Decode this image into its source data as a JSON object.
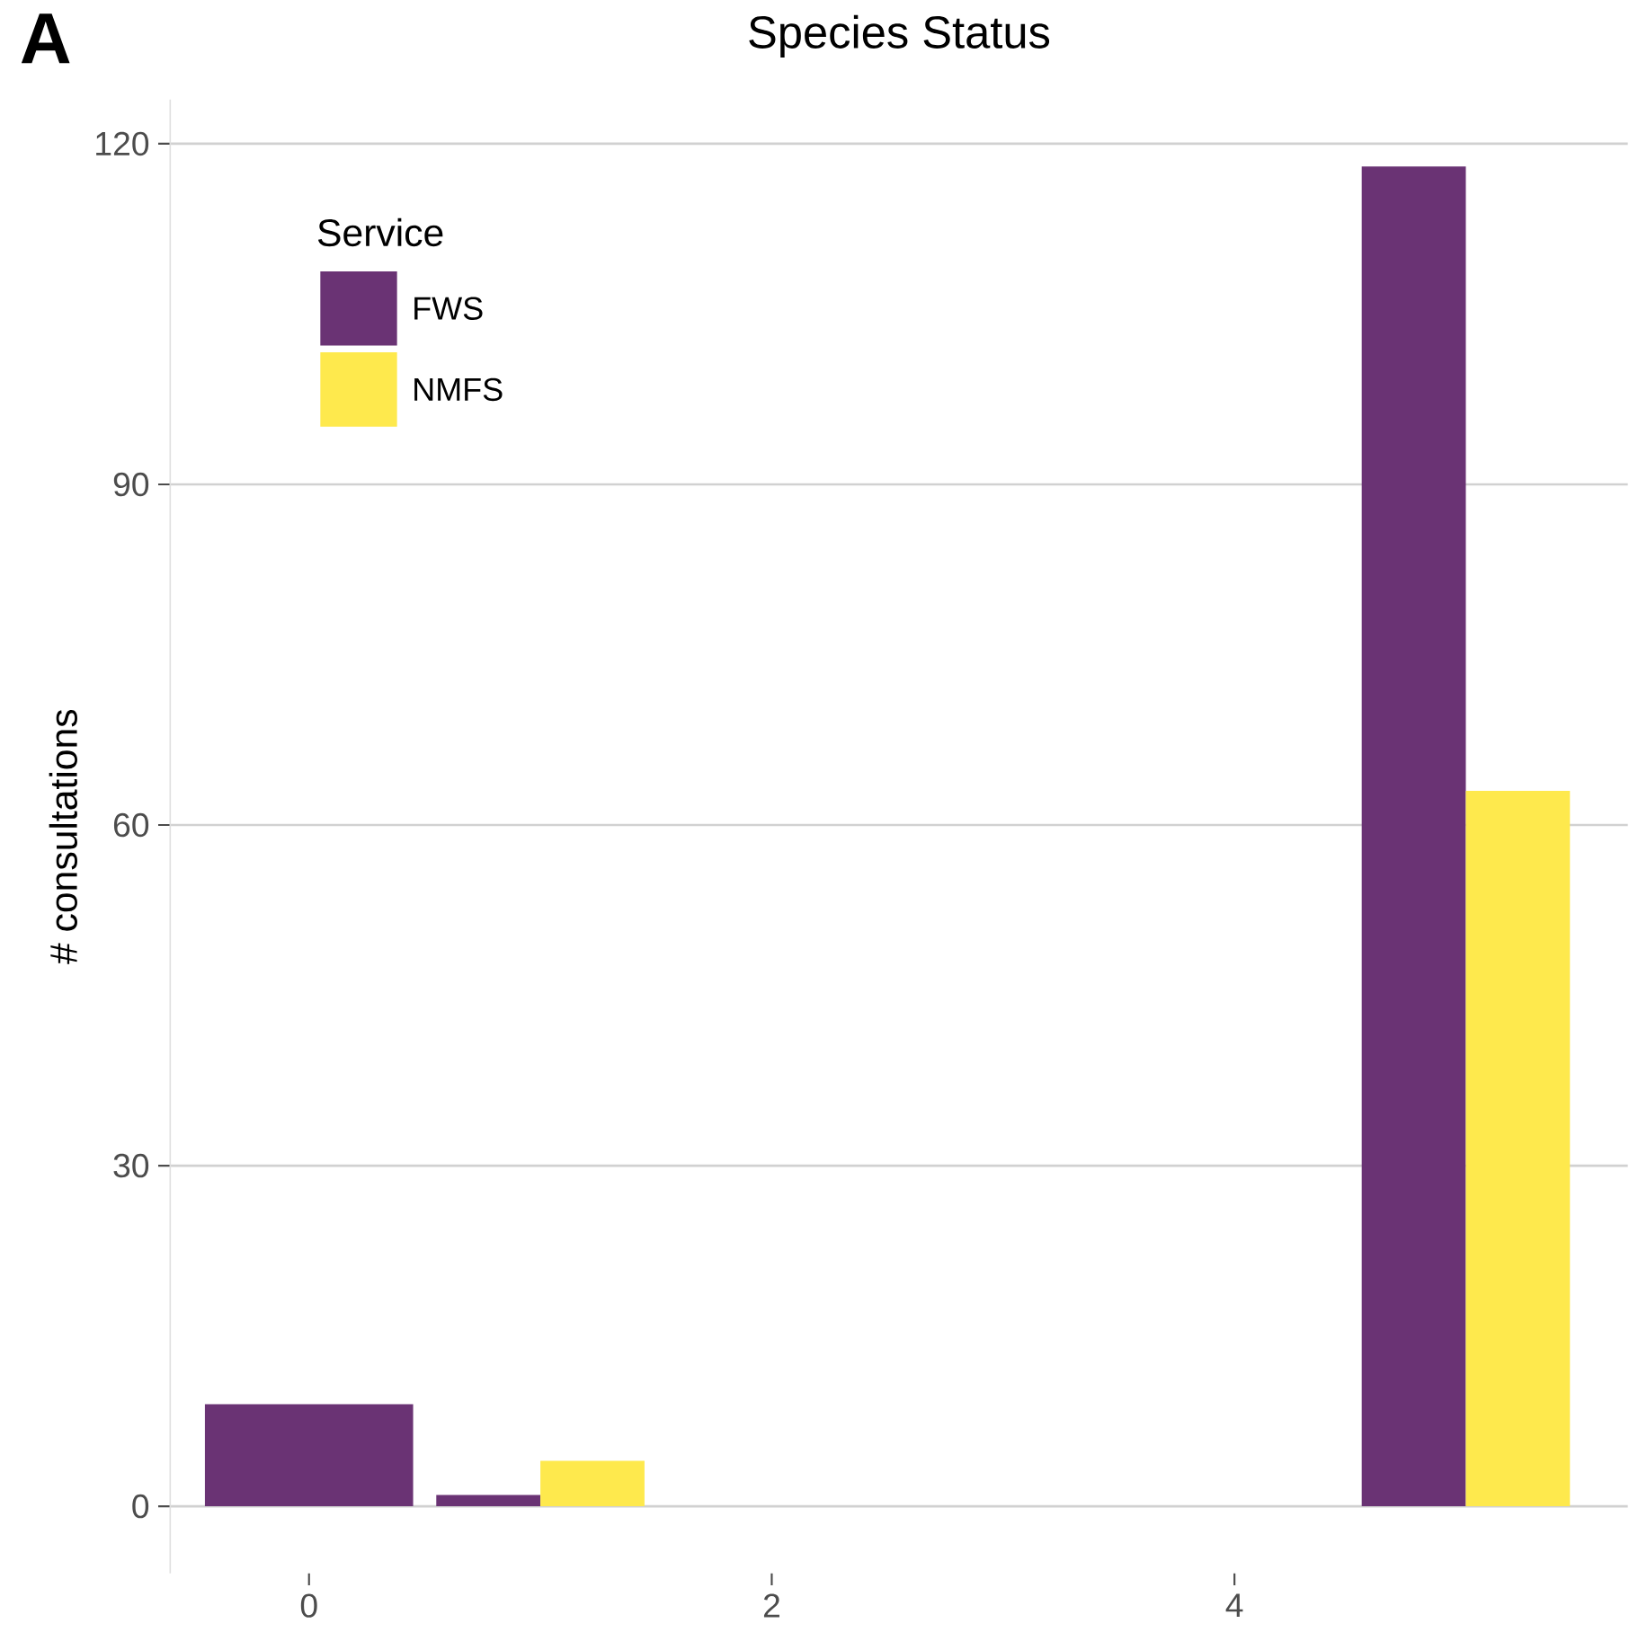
{
  "chart_data": {
    "type": "bar",
    "title": "Species Status",
    "ylabel": "# consultations",
    "legend_title": "Service",
    "annotations": [
      "A"
    ],
    "series": [
      {
        "name": "FWS",
        "color": "#6a3374",
        "x": [
          0,
          1,
          5
        ],
        "values": [
          9,
          1,
          118
        ]
      },
      {
        "name": "NMFS",
        "color": "#fee94d",
        "x": [
          1,
          5
        ],
        "values": [
          4,
          63
        ]
      }
    ],
    "xlim": [
      -0.6,
      5.7
    ],
    "xticks": [
      0,
      2,
      4
    ],
    "ylim": [
      -5.9,
      123.9
    ],
    "yticks": [
      0,
      30,
      60,
      90,
      120
    ],
    "grid": "y",
    "legend": "top left"
  }
}
